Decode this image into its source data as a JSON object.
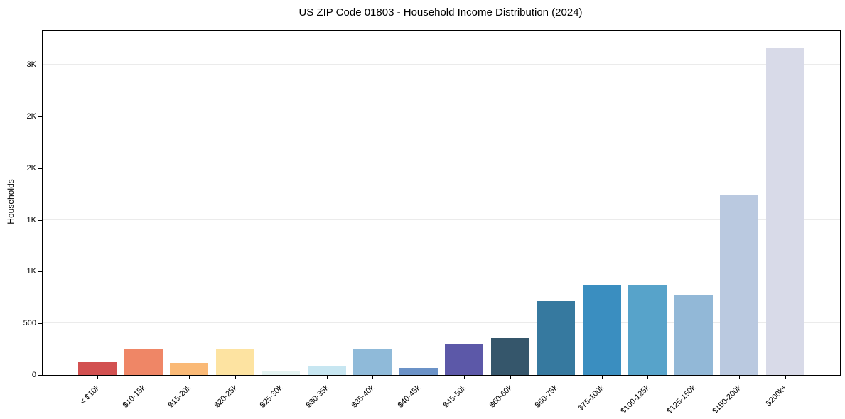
{
  "chart_data": {
    "type": "bar",
    "title": "US ZIP Code 01803 - Household Income Distribution (2024)",
    "xlabel": "",
    "ylabel": "Households",
    "categories": [
      "< $10k",
      "$10-15k",
      "$15-20k",
      "$20-25k",
      "$25-30k",
      "$30-35k",
      "$35-40k",
      "$40-45k",
      "$45-50k",
      "$50-60k",
      "$60-75k",
      "$75-100k",
      "$100-125k",
      "$125-150k",
      "$150-200k",
      "$200k+"
    ],
    "values": [
      122,
      245,
      120,
      252,
      40,
      88,
      255,
      70,
      300,
      355,
      712,
      865,
      872,
      770,
      1740,
      3160
    ],
    "bar_colors": [
      "#d25050",
      "#ef8666",
      "#fab976",
      "#fde3a1",
      "#e4f3f1",
      "#c7e6f1",
      "#8fbad9",
      "#6b92c7",
      "#5c58a8",
      "#35566b",
      "#36799f",
      "#3a8ec0",
      "#57a3ca",
      "#92b8d7",
      "#bac9e0",
      "#d8dae8"
    ],
    "yticks": [
      {
        "value": 0,
        "label": "0"
      },
      {
        "value": 500,
        "label": "500"
      },
      {
        "value": 1000,
        "label": "1K"
      },
      {
        "value": 1500,
        "label": "1K"
      },
      {
        "value": 2000,
        "label": "2K"
      },
      {
        "value": 2500,
        "label": "2K"
      },
      {
        "value": 3000,
        "label": "3K"
      }
    ],
    "ylim": [
      0,
      3330
    ],
    "grid": "horizontal",
    "legend": "none",
    "background_color": "#ffffff",
    "grid_color": "#ebebeb",
    "spine_color": "#000000",
    "text_color": "#000000"
  }
}
